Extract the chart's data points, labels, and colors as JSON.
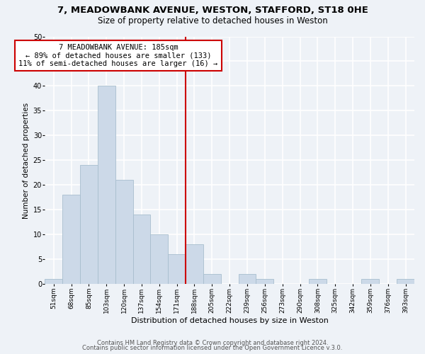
{
  "title1": "7, MEADOWBANK AVENUE, WESTON, STAFFORD, ST18 0HE",
  "title2": "Size of property relative to detached houses in Weston",
  "xlabel": "Distribution of detached houses by size in Weston",
  "ylabel": "Number of detached properties",
  "bar_labels": [
    "51sqm",
    "68sqm",
    "85sqm",
    "103sqm",
    "120sqm",
    "137sqm",
    "154sqm",
    "171sqm",
    "188sqm",
    "205sqm",
    "222sqm",
    "239sqm",
    "256sqm",
    "273sqm",
    "290sqm",
    "308sqm",
    "325sqm",
    "342sqm",
    "359sqm",
    "376sqm",
    "393sqm"
  ],
  "bar_heights": [
    1,
    18,
    24,
    40,
    21,
    14,
    10,
    6,
    8,
    2,
    0,
    2,
    1,
    0,
    0,
    1,
    0,
    0,
    1,
    0,
    1
  ],
  "bar_color": "#ccd9e8",
  "bar_edgecolor": "#a8bece",
  "vline_index": 8,
  "vline_color": "#cc0000",
  "annotation_title": "7 MEADOWBANK AVENUE: 185sqm",
  "annotation_line1": "← 89% of detached houses are smaller (133)",
  "annotation_line2": "11% of semi-detached houses are larger (16) →",
  "annotation_box_facecolor": "#ffffff",
  "annotation_box_edgecolor": "#cc0000",
  "ylim": [
    0,
    50
  ],
  "yticks": [
    0,
    5,
    10,
    15,
    20,
    25,
    30,
    35,
    40,
    45,
    50
  ],
  "footer1": "Contains HM Land Registry data © Crown copyright and database right 2024.",
  "footer2": "Contains public sector information licensed under the Open Government Licence v.3.0.",
  "bg_color": "#eef2f7",
  "plot_bg_color": "#eef2f7",
  "grid_color": "#ffffff"
}
